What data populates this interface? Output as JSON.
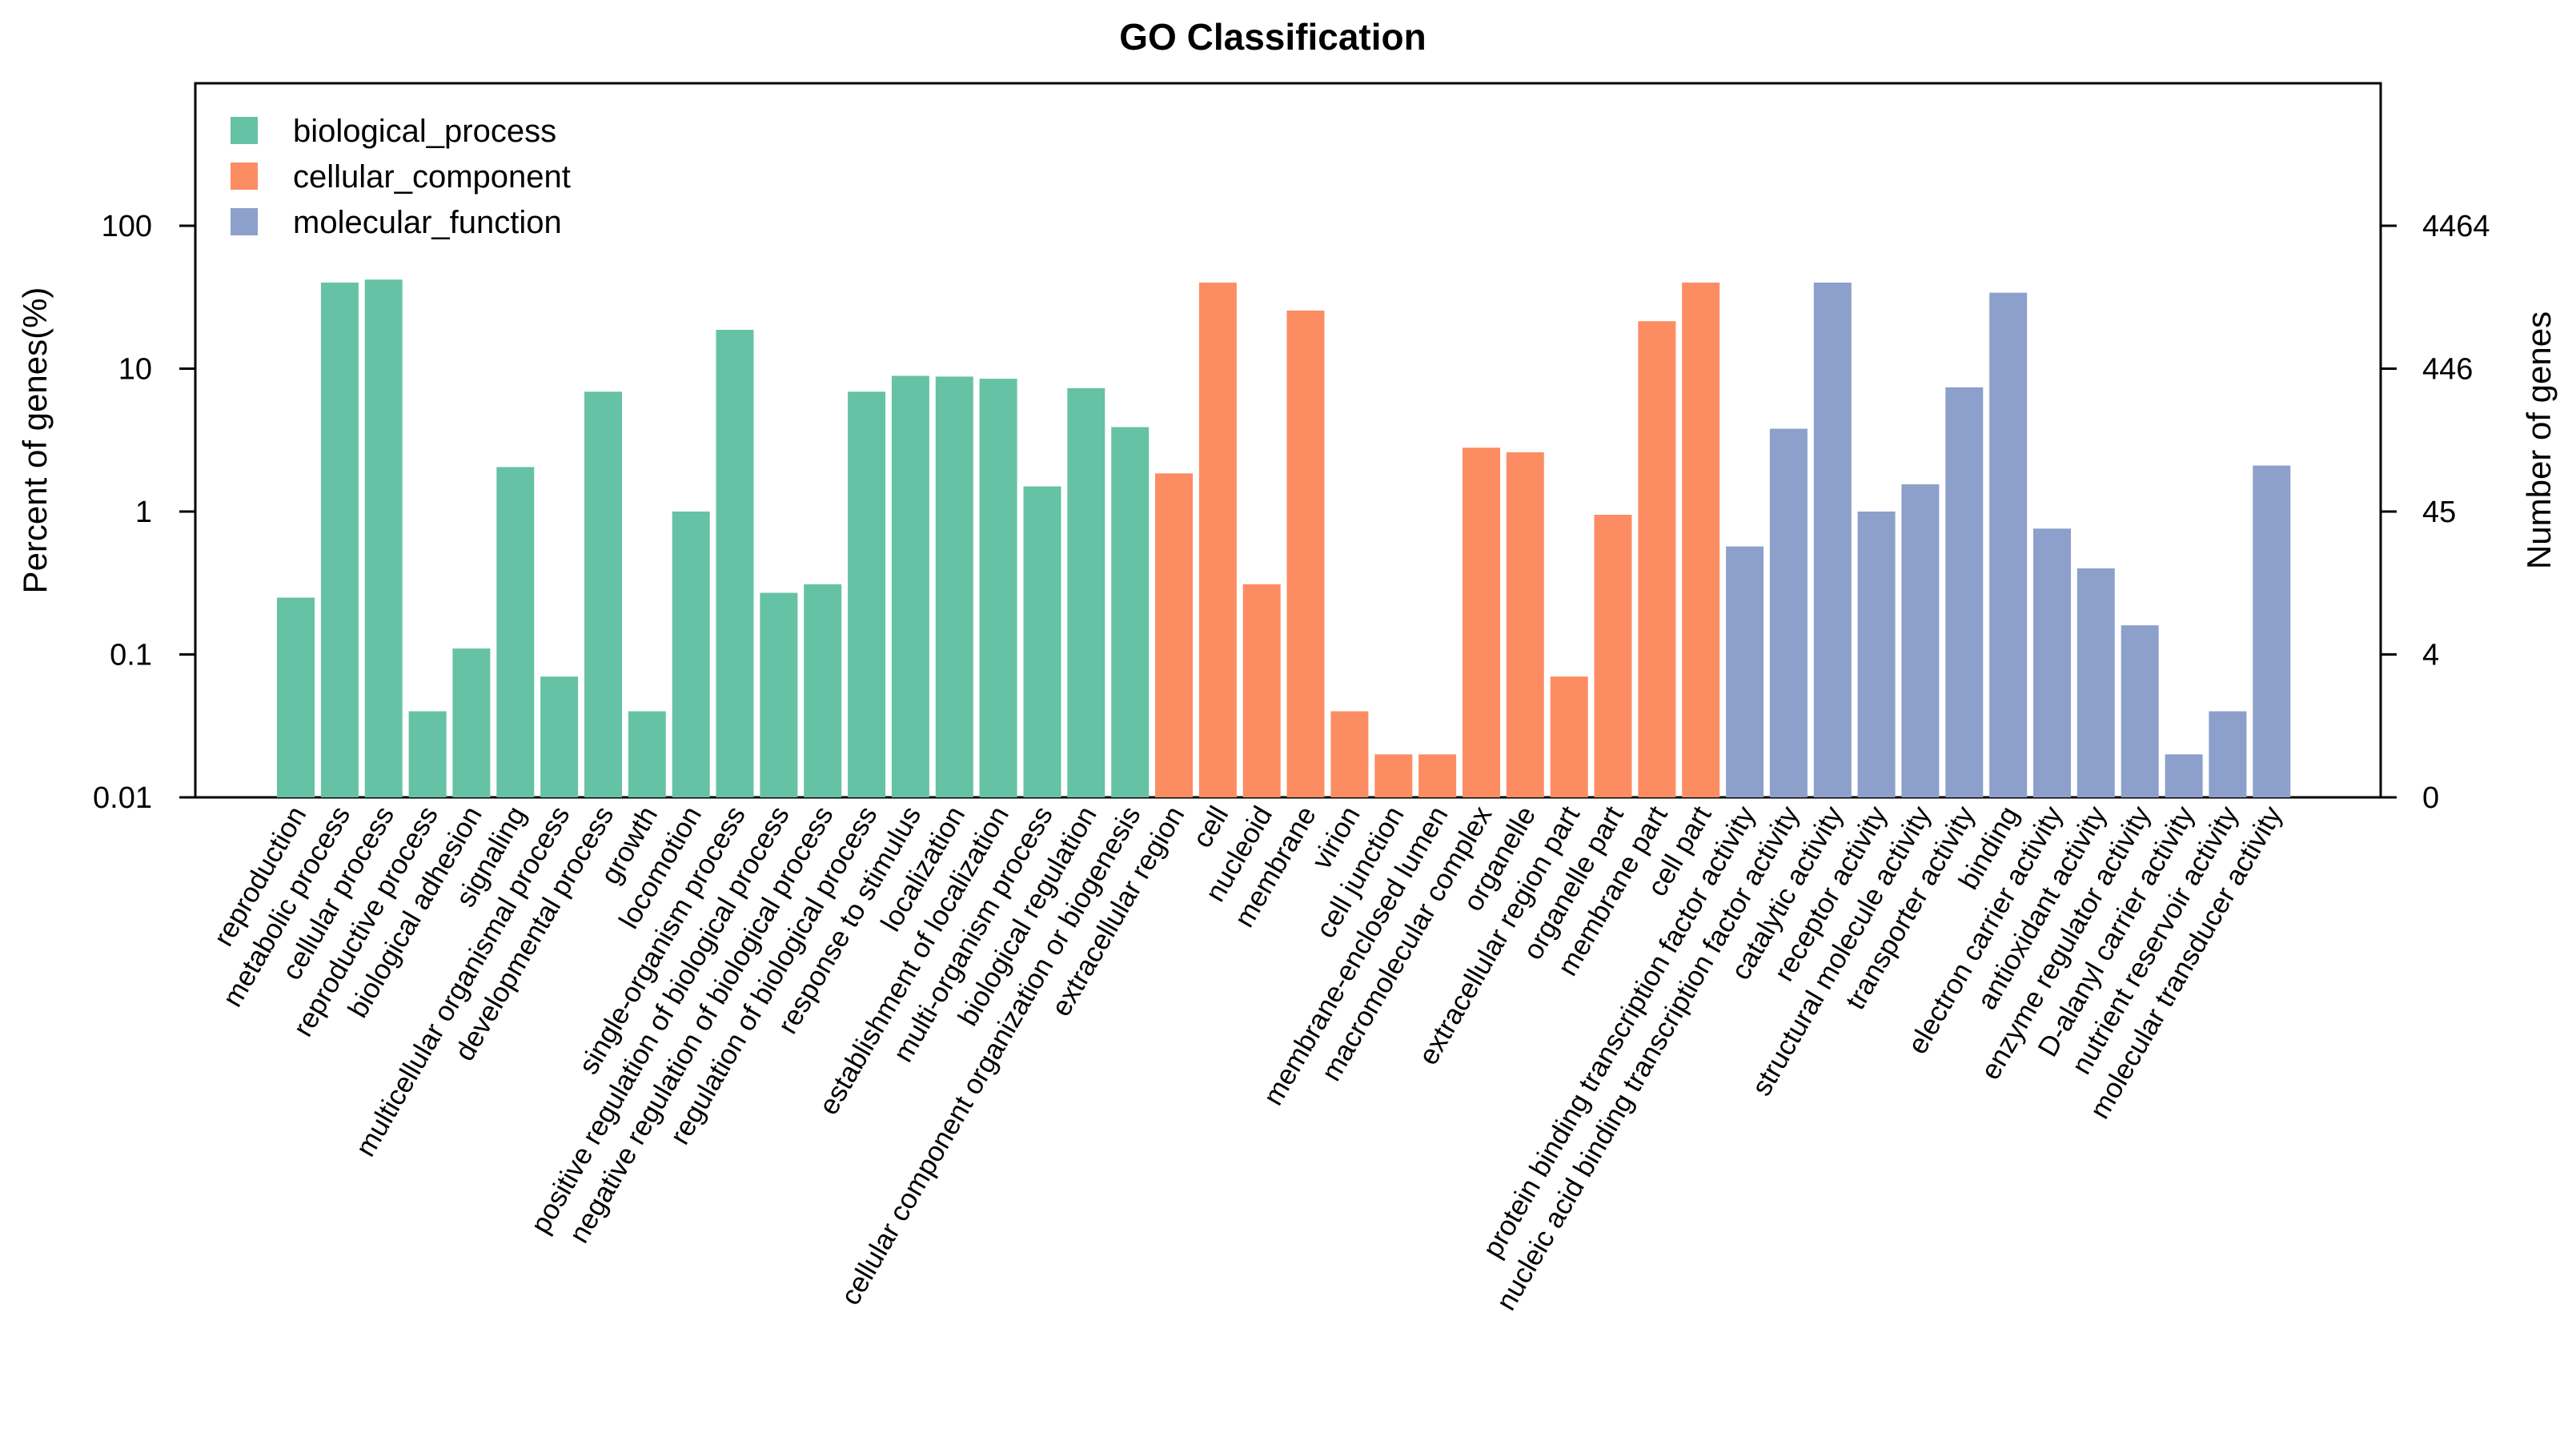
{
  "chart_data": {
    "type": "bar",
    "title": "GO Classification",
    "ylabel": "Percent of genes(%)",
    "ylabel_right": "Number of genes",
    "y_scale": "log10",
    "ylim": [
      0.01,
      1000
    ],
    "y_ticks": [
      0.01,
      0.1,
      1,
      10,
      100
    ],
    "y_tick_labels": [
      "0.01",
      "0.1",
      "1",
      "10",
      "100"
    ],
    "y_right_ticks": [
      0.01,
      0.1,
      1,
      10,
      100
    ],
    "y_right_tick_labels": [
      "0",
      "4",
      "45",
      "446",
      "4464"
    ],
    "grid": false,
    "legend_position": "top-left",
    "legend": [
      {
        "name": "biological_process",
        "color": "#66C2A5"
      },
      {
        "name": "cellular_component",
        "color": "#FC8D62"
      },
      {
        "name": "molecular_function",
        "color": "#8DA0CB"
      }
    ],
    "bars": [
      {
        "label": "reproduction",
        "value": 0.25,
        "group": 0
      },
      {
        "label": "metabolic process",
        "value": 40,
        "group": 0
      },
      {
        "label": "cellular process",
        "value": 42,
        "group": 0
      },
      {
        "label": "reproductive process",
        "value": 0.04,
        "group": 0
      },
      {
        "label": "biological adhesion",
        "value": 0.11,
        "group": 0
      },
      {
        "label": "signaling",
        "value": 2.05,
        "group": 0
      },
      {
        "label": "multicellular organismal process",
        "value": 0.07,
        "group": 0
      },
      {
        "label": "developmental process",
        "value": 6.9,
        "group": 0
      },
      {
        "label": "growth",
        "value": 0.04,
        "group": 0
      },
      {
        "label": "locomotion",
        "value": 1.0,
        "group": 0
      },
      {
        "label": "single-organism process",
        "value": 18.7,
        "group": 0
      },
      {
        "label": "positive regulation of biological process",
        "value": 0.27,
        "group": 0
      },
      {
        "label": "negative regulation of biological process",
        "value": 0.31,
        "group": 0
      },
      {
        "label": "regulation of biological process",
        "value": 6.9,
        "group": 0
      },
      {
        "label": "response to stimulus",
        "value": 8.9,
        "group": 0
      },
      {
        "label": "localization",
        "value": 8.8,
        "group": 0
      },
      {
        "label": "establishment of localization",
        "value": 8.5,
        "group": 0
      },
      {
        "label": "multi-organism process",
        "value": 1.5,
        "group": 0
      },
      {
        "label": "biological regulation",
        "value": 7.3,
        "group": 0
      },
      {
        "label": "cellular component organization or biogenesis",
        "value": 3.9,
        "group": 0
      },
      {
        "label": "extracellular region",
        "value": 1.85,
        "group": 1
      },
      {
        "label": "cell",
        "value": 40,
        "group": 1
      },
      {
        "label": "nucleoid",
        "value": 0.31,
        "group": 1
      },
      {
        "label": "membrane",
        "value": 25.5,
        "group": 1
      },
      {
        "label": "virion",
        "value": 0.04,
        "group": 1
      },
      {
        "label": "cell junction",
        "value": 0.02,
        "group": 1
      },
      {
        "label": "membrane-enclosed lumen",
        "value": 0.02,
        "group": 1
      },
      {
        "label": "macromolecular complex",
        "value": 2.8,
        "group": 1
      },
      {
        "label": "organelle",
        "value": 2.6,
        "group": 1
      },
      {
        "label": "extracellular region part",
        "value": 0.07,
        "group": 1
      },
      {
        "label": "organelle part",
        "value": 0.95,
        "group": 1
      },
      {
        "label": "membrane part",
        "value": 21.5,
        "group": 1
      },
      {
        "label": "cell part",
        "value": 40,
        "group": 1
      },
      {
        "label": "protein binding transcription factor activity",
        "value": 0.57,
        "group": 2
      },
      {
        "label": "nucleic acid binding transcription factor activity",
        "value": 3.8,
        "group": 2
      },
      {
        "label": "catalytic activity",
        "value": 40,
        "group": 2
      },
      {
        "label": "receptor activity",
        "value": 1.0,
        "group": 2
      },
      {
        "label": "structural molecule activity",
        "value": 1.55,
        "group": 2
      },
      {
        "label": "transporter activity",
        "value": 7.4,
        "group": 2
      },
      {
        "label": "binding",
        "value": 34,
        "group": 2
      },
      {
        "label": "electron carrier activity",
        "value": 0.76,
        "group": 2
      },
      {
        "label": "antioxidant activity",
        "value": 0.4,
        "group": 2
      },
      {
        "label": "enzyme regulator activity",
        "value": 0.16,
        "group": 2
      },
      {
        "label": "D-alanyl carrier activity",
        "value": 0.02,
        "group": 2
      },
      {
        "label": "nutrient reservoir activity",
        "value": 0.04,
        "group": 2
      },
      {
        "label": "molecular transducer activity",
        "value": 2.1,
        "group": 2
      }
    ]
  }
}
